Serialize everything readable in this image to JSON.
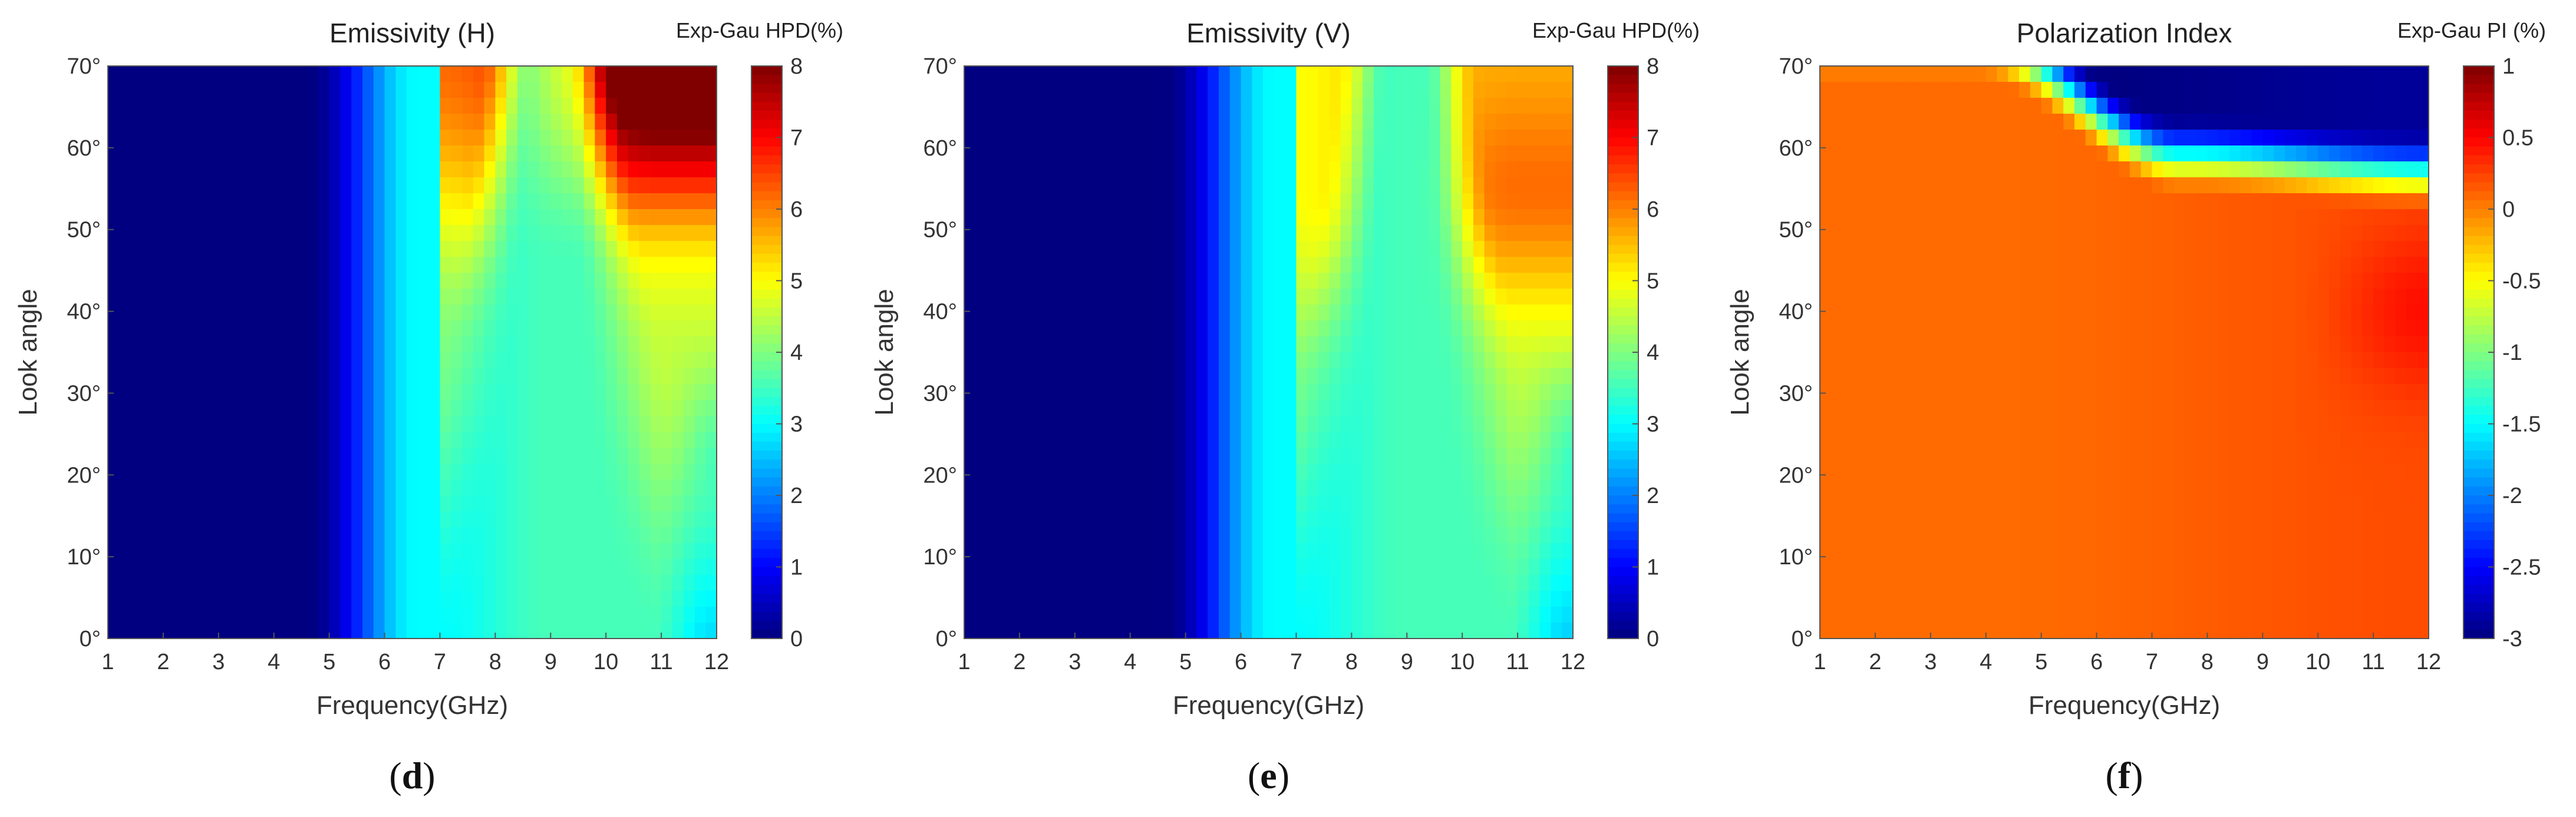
{
  "figure": {
    "panels": [
      {
        "id": "d",
        "title": "Emissivity (H)",
        "colorbar_title": "Exp-Gau HPD(%)",
        "label_letter": "d"
      },
      {
        "id": "e",
        "title": "Emissivity (V)",
        "colorbar_title": "Exp-Gau HPD(%)",
        "label_letter": "e"
      },
      {
        "id": "f",
        "title": "Polarization Index",
        "colorbar_title": "Exp-Gau PI (%)",
        "label_letter": "f"
      }
    ]
  },
  "chart_data": [
    {
      "type": "heatmap",
      "title": "Emissivity (H)",
      "xlabel": "Frequency(GHz)",
      "ylabel": "Look angle",
      "xlim": [
        1,
        12
      ],
      "ylim": [
        0,
        70
      ],
      "xticks": [
        "1",
        "2",
        "3",
        "4",
        "5",
        "6",
        "7",
        "8",
        "9",
        "10",
        "11",
        "12"
      ],
      "yticks": [
        "0°",
        "10°",
        "20°",
        "30°",
        "40°",
        "50°",
        "60°",
        "70°"
      ],
      "colorbar": {
        "title": "Exp-Gau HPD(%)",
        "range": [
          0,
          8
        ],
        "ticks": [
          "0",
          "1",
          "2",
          "3",
          "4",
          "5",
          "6",
          "7",
          "8"
        ]
      },
      "colormap": "jet",
      "description": "Value rises with frequency; near 0 below 5 GHz, ~3 at 6–7 GHz, V-shaped minimum (~3.5) around 9 GHz at 15–20°, up to ~8 at 70° above 10 GHz"
    },
    {
      "type": "heatmap",
      "title": "Emissivity (V)",
      "xlabel": "Frequency(GHz)",
      "ylabel": "Look angle",
      "xlim": [
        1,
        12
      ],
      "ylim": [
        0,
        70
      ],
      "xticks": [
        "1",
        "2",
        "3",
        "4",
        "5",
        "6",
        "7",
        "8",
        "9",
        "10",
        "11",
        "12"
      ],
      "yticks": [
        "0°",
        "10°",
        "20°",
        "30°",
        "40°",
        "50°",
        "60°",
        "70°"
      ],
      "colorbar": {
        "title": "Exp-Gau HPD(%)",
        "range": [
          0,
          8
        ],
        "ticks": [
          "0",
          "1",
          "2",
          "3",
          "4",
          "5",
          "6",
          "7",
          "8"
        ]
      },
      "colormap": "jet",
      "description": "Value rises with frequency; near 0 below 5 GHz, ~3 at 6–7 GHz, V-shaped minimum (~3.5) around 9 GHz at 15–20°, maximum ~6 near 55° at 11 GHz"
    },
    {
      "type": "heatmap",
      "title": "Polarization Index",
      "xlabel": "Frequency(GHz)",
      "ylabel": "Look angle",
      "xlim": [
        1,
        12
      ],
      "ylim": [
        0,
        70
      ],
      "xticks": [
        "1",
        "2",
        "3",
        "4",
        "5",
        "6",
        "7",
        "8",
        "9",
        "10",
        "11",
        "12"
      ],
      "yticks": [
        "0°",
        "10°",
        "20°",
        "30°",
        "40°",
        "50°",
        "60°",
        "70°"
      ],
      "colorbar": {
        "title": "Exp-Gau PI (%)",
        "range": [
          -3,
          1
        ],
        "ticks": [
          "1",
          "0.5",
          "0",
          "-0.5",
          "-1",
          "-1.5",
          "-2",
          "-2.5",
          "-3"
        ]
      },
      "colormap": "jet",
      "description": "Mostly ~0 to 0.2 everywhere; sharp drop to ~-3 at look angles above ~62° for frequencies above ~6 GHz, transition band curving down from 4 GHz at 70° to 55° at 12 GHz; ~0.3 near 40° at 11–12 GHz"
    }
  ]
}
